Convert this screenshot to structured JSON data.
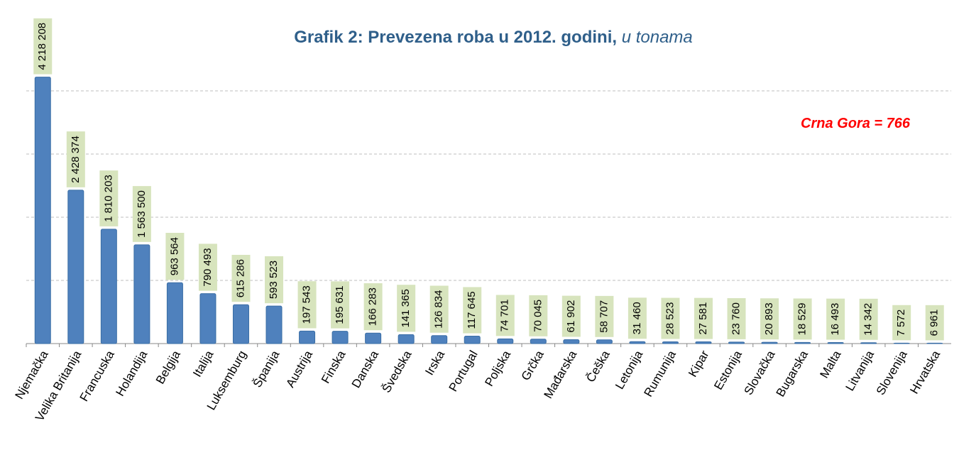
{
  "chart_data": {
    "type": "bar",
    "title": "Grafik 2: Prevezena roba u 2012. godini,",
    "subtitle": "u tonama",
    "annotations": [
      "Crna Gora = 766"
    ],
    "categories": [
      "Njemačka",
      "Velika Britanija",
      "Francuska",
      "Holandija",
      "Belgija",
      "Italija",
      "Luksemburg",
      "Španija",
      "Austrija",
      "Finska",
      "Danska",
      "Švedska",
      "Irska",
      "Portugal",
      "Poljska",
      "Grčka",
      "Mađarska",
      "Češka",
      "Letonija",
      "Rumunija",
      "Kipar",
      "Estonija",
      "Slovačka",
      "Bugarska",
      "Malta",
      "Litvanija",
      "Slovenija",
      "Hrvatska"
    ],
    "values": [
      4218208,
      2428374,
      1810203,
      1563500,
      963564,
      790493,
      615286,
      593523,
      197543,
      195631,
      166283,
      141365,
      126834,
      117645,
      74701,
      70045,
      61902,
      58707,
      31460,
      28523,
      27581,
      23760,
      20893,
      18529,
      16493,
      14342,
      7572,
      6961
    ],
    "value_labels": [
      "4 218 208",
      "2 428 374",
      "1 810 203",
      "1 563 500",
      "963 564",
      "790 493",
      "615 286",
      "593 523",
      "197 543",
      "195 631",
      "166 283",
      "141 365",
      "126 834",
      "117 645",
      "74 701",
      "70 045",
      "61 902",
      "58 707",
      "31 460",
      "28 523",
      "27 581",
      "23 760",
      "20 893",
      "18 529",
      "16 493",
      "14 342",
      "7 572",
      "6 961"
    ],
    "color": "#4f81bd",
    "label_box_color": "#d7e4bd",
    "ylim": [
      0,
      4000000
    ],
    "yticks": [
      0,
      1000000,
      2000000,
      3000000,
      4000000
    ],
    "grid": true
  }
}
